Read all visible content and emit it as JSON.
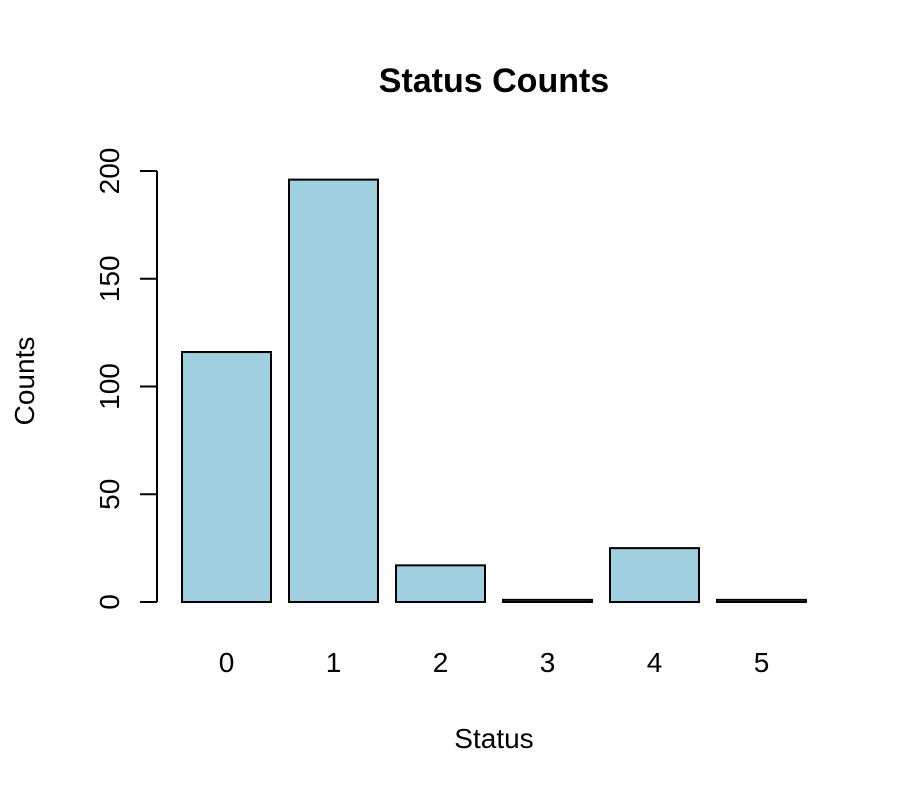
{
  "chart_data": {
    "type": "bar",
    "title": "Status Counts",
    "xlabel": "Status",
    "ylabel": "Counts",
    "categories": [
      "0",
      "1",
      "2",
      "3",
      "4",
      "5"
    ],
    "values": [
      116,
      196,
      17,
      1,
      25,
      1
    ],
    "ylim": [
      0,
      200
    ],
    "yticks": [
      "0",
      "50",
      "100",
      "150",
      "200"
    ],
    "bar_color": "#a0cfe0",
    "grid": false,
    "legend": "none"
  }
}
